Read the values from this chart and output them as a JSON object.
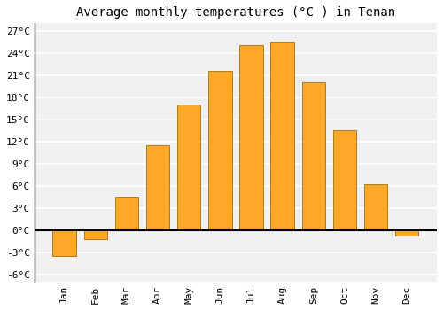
{
  "title": "Average monthly temperatures (°C ) in Tenan",
  "months": [
    "Jan",
    "Feb",
    "Mar",
    "Apr",
    "May",
    "Jun",
    "Jul",
    "Aug",
    "Sep",
    "Oct",
    "Nov",
    "Dec"
  ],
  "values": [
    -3.5,
    -1.2,
    4.5,
    11.5,
    17.0,
    21.5,
    25.0,
    25.5,
    20.0,
    13.5,
    6.2,
    -0.8
  ],
  "bar_color": "#FFA726",
  "bar_edge_color": "#8B6000",
  "background_color": "#ffffff",
  "plot_bg_color": "#f0f0f0",
  "grid_color": "#ffffff",
  "ylim": [
    -7,
    28
  ],
  "yticks": [
    -6,
    -3,
    0,
    3,
    6,
    9,
    12,
    15,
    18,
    21,
    24,
    27
  ],
  "ylabel_format": "°C",
  "title_fontsize": 10,
  "tick_fontsize": 8,
  "font_family": "monospace"
}
